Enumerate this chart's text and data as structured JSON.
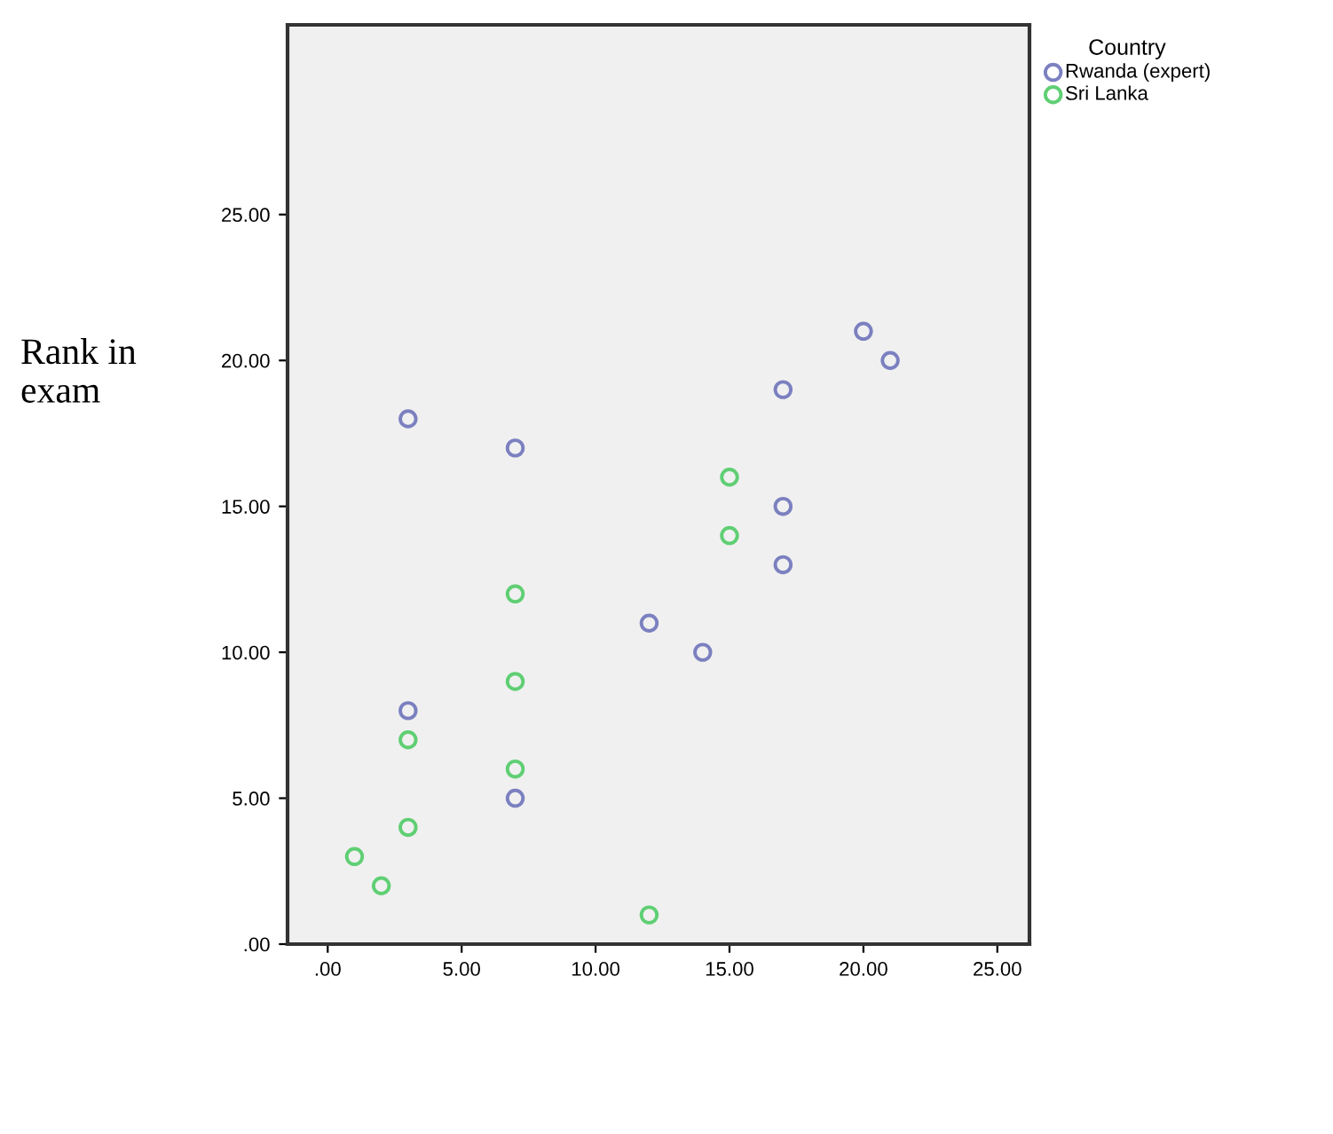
{
  "chart_data": {
    "type": "scatter",
    "ylabel": "Rank in\nexam",
    "legend_title": "Country",
    "legend": "top right",
    "marker": "circle",
    "grid": false,
    "xlim": [
      -1.5,
      26.2
    ],
    "ylim": [
      0,
      31.5
    ],
    "xticks": [
      {
        "value": 0,
        "label": ".00"
      },
      {
        "value": 5,
        "label": "5.00"
      },
      {
        "value": 10,
        "label": "10.00"
      },
      {
        "value": 15,
        "label": "15.00"
      },
      {
        "value": 20,
        "label": "20.00"
      },
      {
        "value": 25,
        "label": "25.00"
      }
    ],
    "yticks": [
      {
        "value": 0,
        "label": ".00"
      },
      {
        "value": 5,
        "label": "5.00"
      },
      {
        "value": 10,
        "label": "10.00"
      },
      {
        "value": 15,
        "label": "15.00"
      },
      {
        "value": 20,
        "label": "20.00"
      },
      {
        "value": 25,
        "label": "25.00"
      }
    ],
    "series": [
      {
        "name": "Rwanda (expert)",
        "color": "#7b80c0",
        "x": [
          3,
          7,
          17,
          20,
          21,
          17,
          17,
          12,
          14,
          3,
          7
        ],
        "values": [
          18,
          17,
          19,
          21,
          20,
          15,
          13,
          11,
          10,
          8,
          5
        ]
      },
      {
        "name": "Sri Lanka",
        "color": "#5fcf73",
        "x": [
          15,
          15,
          7,
          7,
          3,
          7,
          3,
          1,
          2,
          12
        ],
        "values": [
          16,
          14,
          12,
          9,
          7,
          6,
          4,
          3,
          2,
          1
        ]
      }
    ]
  }
}
